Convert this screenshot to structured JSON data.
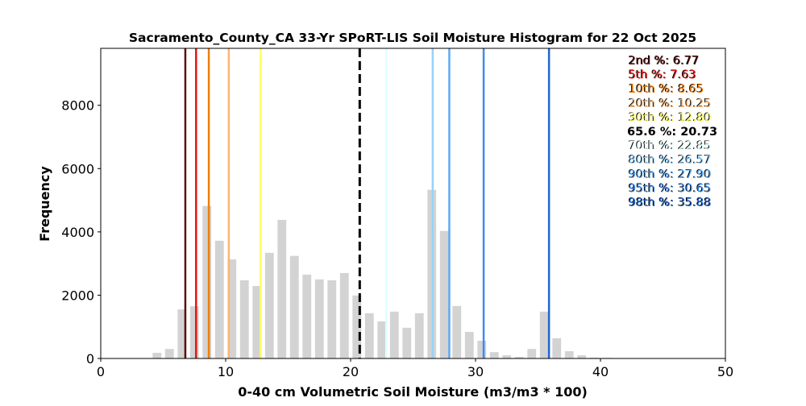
{
  "chart_data": {
    "type": "bar",
    "title": "Sacramento_County_CA 33-Yr SPoRT-LIS Soil Moisture Histogram for 22 Oct 2025",
    "xlabel": "0-40 cm Volumetric Soil Moisture (m3/m3 * 100)",
    "ylabel": "Frequency",
    "xlim": [
      0,
      50
    ],
    "ylim": [
      0,
      9800
    ],
    "xticks": [
      0,
      10,
      20,
      30,
      40,
      50
    ],
    "yticks": [
      0,
      2000,
      4000,
      6000,
      8000
    ],
    "bar_color": "#d3d3d3",
    "bar_width": 0.7,
    "x": [
      4.5,
      5.5,
      6.5,
      7.5,
      8.5,
      9.5,
      10.5,
      11.5,
      12.5,
      13.5,
      14.5,
      15.5,
      16.5,
      17.5,
      18.5,
      19.5,
      20.5,
      21.5,
      22.5,
      23.5,
      24.5,
      25.5,
      26.5,
      27.5,
      28.5,
      29.5,
      30.5,
      31.5,
      32.5,
      33.5,
      34.5,
      35.5,
      36.5,
      37.5,
      38.5,
      39.5,
      40.5
    ],
    "values": [
      180,
      300,
      1550,
      1650,
      4820,
      3720,
      3130,
      2470,
      2290,
      3340,
      4380,
      3240,
      2650,
      2500,
      2470,
      2700,
      1990,
      1430,
      1170,
      1480,
      970,
      1430,
      5330,
      4030,
      1660,
      840,
      560,
      200,
      100,
      50,
      300,
      1480,
      640,
      230,
      100,
      25,
      20
    ],
    "percentiles": [
      {
        "label": "2nd %: 6.77",
        "value": 6.77,
        "color": "#5c0a0a",
        "dashed": false
      },
      {
        "label": "5th %: 7.63",
        "value": 7.63,
        "color": "#e8140f",
        "dashed": false
      },
      {
        "label": "10th %: 8.65",
        "value": 8.65,
        "color": "#f07d0a",
        "dashed": false
      },
      {
        "label": "20th %: 10.25",
        "value": 10.25,
        "color": "#ffb46e",
        "dashed": false
      },
      {
        "label": "30th %: 12.80",
        "value": 12.8,
        "color": "#ffff5a",
        "dashed": false
      },
      {
        "label": "65.6 %: 20.73",
        "value": 20.73,
        "color": "#000000",
        "dashed": true
      },
      {
        "label": "70th %: 22.85",
        "value": 22.85,
        "color": "#e0ffff",
        "dashed": false
      },
      {
        "label": "80th %: 26.57",
        "value": 26.57,
        "color": "#96d2fa",
        "dashed": false
      },
      {
        "label": "90th %: 27.90",
        "value": 27.9,
        "color": "#5aaaf5",
        "dashed": false
      },
      {
        "label": "95th %: 30.65",
        "value": 30.65,
        "color": "#3c8cf0",
        "dashed": false
      },
      {
        "label": "98th %: 35.88",
        "value": 35.88,
        "color": "#1e64d2",
        "dashed": false
      }
    ],
    "legend_position": "top-right"
  }
}
